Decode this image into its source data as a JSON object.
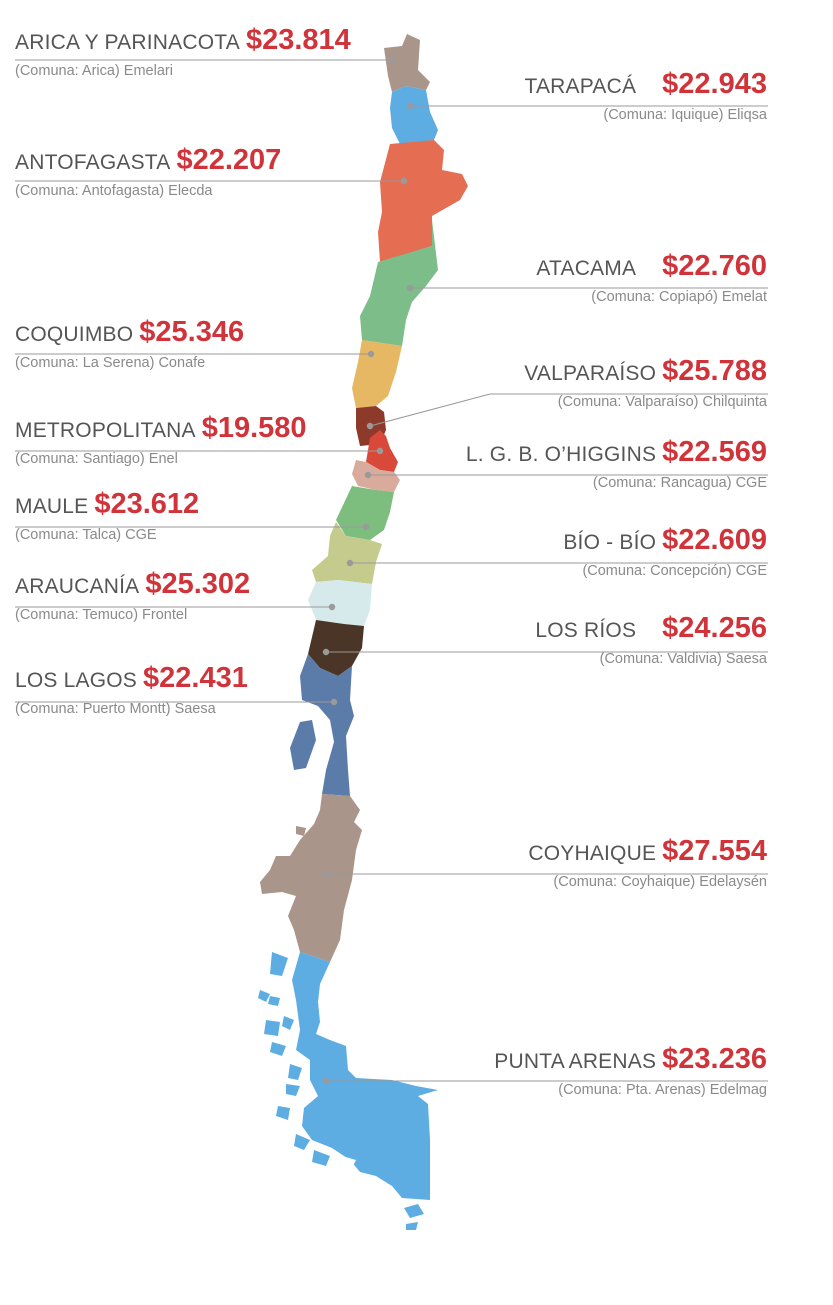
{
  "regions": [
    {
      "id": "arica",
      "name": "ARICA Y PARINACOTA",
      "price": "$23.814",
      "comuna": "(Comuna: Arica) Emelari",
      "color": "#a9958a"
    },
    {
      "id": "tarapaca",
      "name": "TARAPACÁ",
      "price": "$22.943",
      "comuna": "(Comuna: Iquique) Eliqsa",
      "color": "#5dade2"
    },
    {
      "id": "antofagasta",
      "name": "ANTOFAGASTA",
      "price": "$22.207",
      "comuna": "(Comuna: Antofagasta) Elecda",
      "color": "#e46d52"
    },
    {
      "id": "atacama",
      "name": "ATACAMA",
      "price": "$22.760",
      "comuna": "(Comuna: Copiapó) Emelat",
      "color": "#7dbd8a"
    },
    {
      "id": "coquimbo",
      "name": "COQUIMBO",
      "price": "$25.346",
      "comuna": "(Comuna: La Serena) Conafe",
      "color": "#e6b864"
    },
    {
      "id": "valparaiso",
      "name": "VALPARAÍSO",
      "price": "$25.788",
      "comuna": "(Comuna: Valparaíso) Chilquinta",
      "color": "#8e3a2a"
    },
    {
      "id": "metropolitana",
      "name": "METROPOLITANA",
      "price": "$19.580",
      "comuna": "(Comuna: Santiago) Enel",
      "color": "#d9493a"
    },
    {
      "id": "ohiggins",
      "name": "L. G. B. O’HIGGINS",
      "price": "$22.569",
      "comuna": "(Comuna: Rancagua) CGE",
      "color": "#d9ab9c"
    },
    {
      "id": "maule",
      "name": "MAULE",
      "price": "$23.612",
      "comuna": "(Comuna: Talca) CGE",
      "color": "#7dbd7d"
    },
    {
      "id": "biobio",
      "name": "BÍO - BÍO",
      "price": "$22.609",
      "comuna": "(Comuna: Concepción) CGE",
      "color": "#c5cb8d"
    },
    {
      "id": "araucania",
      "name": "ARAUCANÍA",
      "price": "$25.302",
      "comuna": "(Comuna: Temuco) Frontel",
      "color": "#d6eaec"
    },
    {
      "id": "losrios",
      "name": "LOS RÍOS",
      "price": "$24.256",
      "comuna": "(Comuna: Valdivia) Saesa",
      "color": "#4a3527"
    },
    {
      "id": "loslagos",
      "name": "LOS LAGOS",
      "price": "$22.431",
      "comuna": "(Comuna: Puerto Montt) Saesa",
      "color": "#5b7ca8"
    },
    {
      "id": "coyhaique",
      "name": "COYHAIQUE",
      "price": "$27.554",
      "comuna": "(Comuna: Coyhaique) Edelaysén",
      "color": "#a9958a"
    },
    {
      "id": "puntaarenas",
      "name": "PUNTA ARENAS",
      "price": "$23.236",
      "comuna": "(Comuna: Pta. Arenas) Edelmag",
      "color": "#5dade2"
    }
  ],
  "colors": {
    "price": "#d0343a",
    "name": "#555555",
    "sub": "#8a8a8a",
    "leader": "#999999"
  }
}
